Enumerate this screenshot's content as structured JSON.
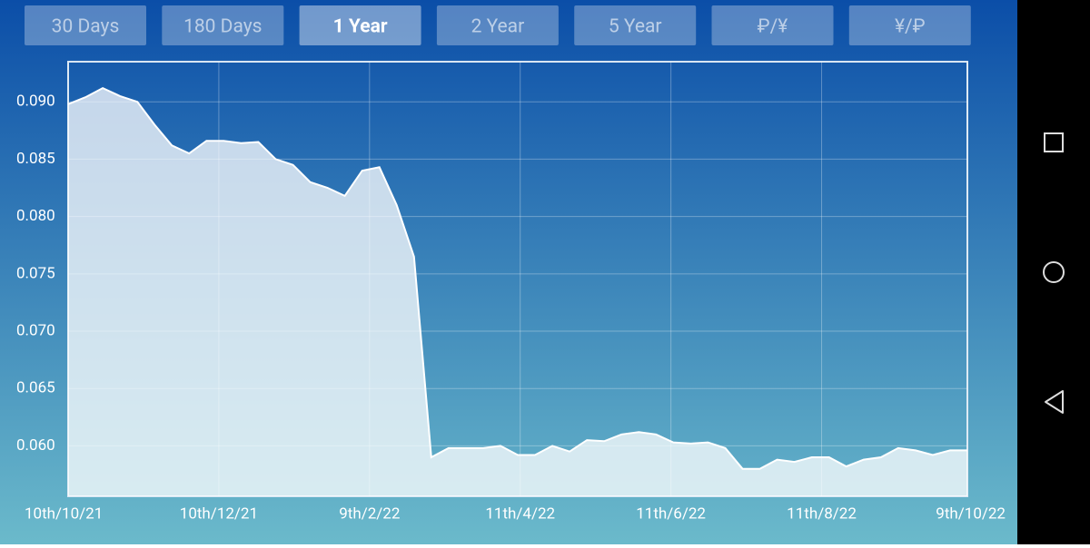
{
  "buttons": [
    "30 Days",
    "180 Days",
    "1 Year",
    "2 Year",
    "5 Year",
    "₽/¥",
    "¥/₽"
  ],
  "chart_data": {
    "type": "area",
    "color": "#ffffff",
    "x": [
      "2021-10-10",
      "2021-10-17",
      "2021-10-24",
      "2021-10-31",
      "2021-11-07",
      "2021-11-14",
      "2021-11-21",
      "2021-11-28",
      "2021-12-05",
      "2021-12-12",
      "2021-12-19",
      "2021-12-26",
      "2022-01-02",
      "2022-01-09",
      "2022-01-16",
      "2022-01-23",
      "2022-01-30",
      "2022-02-06",
      "2022-02-13",
      "2022-02-20",
      "2022-02-27",
      "2022-03-06",
      "2022-03-13",
      "2022-03-20",
      "2022-03-27",
      "2022-04-03",
      "2022-04-10",
      "2022-04-17",
      "2022-04-24",
      "2022-05-01",
      "2022-05-08",
      "2022-05-15",
      "2022-05-22",
      "2022-05-29",
      "2022-06-05",
      "2022-06-12",
      "2022-06-19",
      "2022-06-26",
      "2022-07-03",
      "2022-07-10",
      "2022-07-17",
      "2022-07-24",
      "2022-07-31",
      "2022-08-07",
      "2022-08-14",
      "2022-08-21",
      "2022-08-28",
      "2022-09-04",
      "2022-09-11",
      "2022-09-18",
      "2022-09-25",
      "2022-10-02",
      "2022-10-09"
    ],
    "values": [
      0.0898,
      0.0904,
      0.0912,
      0.0905,
      0.09,
      0.088,
      0.0862,
      0.0855,
      0.0866,
      0.0866,
      0.0864,
      0.0865,
      0.085,
      0.0845,
      0.083,
      0.0825,
      0.0818,
      0.084,
      0.0843,
      0.081,
      0.0765,
      0.059,
      0.0598,
      0.0598,
      0.0598,
      0.06,
      0.0592,
      0.0592,
      0.06,
      0.0595,
      0.0605,
      0.0604,
      0.061,
      0.0612,
      0.061,
      0.0603,
      0.0602,
      0.0603,
      0.0598,
      0.058,
      0.058,
      0.0588,
      0.0586,
      0.059,
      0.059,
      0.0582,
      0.0588,
      0.059,
      0.0598,
      0.0596,
      0.0592,
      0.0596,
      0.0596
    ],
    "xlim": [
      "2021-10-10",
      "2022-10-09"
    ],
    "xticks": [
      {
        "value": "2021-10-10",
        "label": "10th/10/21"
      },
      {
        "value": "2021-12-10",
        "label": "10th/12/21"
      },
      {
        "value": "2022-02-09",
        "label": "9th/2/22"
      },
      {
        "value": "2022-04-11",
        "label": "11th/4/22"
      },
      {
        "value": "2022-06-11",
        "label": "11th/6/22"
      },
      {
        "value": "2022-08-11",
        "label": "11th/8/22"
      },
      {
        "value": "2022-10-09",
        "label": "9th/10/22"
      }
    ],
    "ylim": [
      0.0556,
      0.0935
    ],
    "yticks": [
      {
        "value": 0.06,
        "label": "0.060"
      },
      0.065,
      {
        "value": 0.07,
        "label": "0.070"
      },
      0.075,
      {
        "value": 0.08,
        "label": "0.080"
      },
      0.085,
      {
        "value": 0.09,
        "label": "0.090"
      }
    ],
    "grid": true
  }
}
